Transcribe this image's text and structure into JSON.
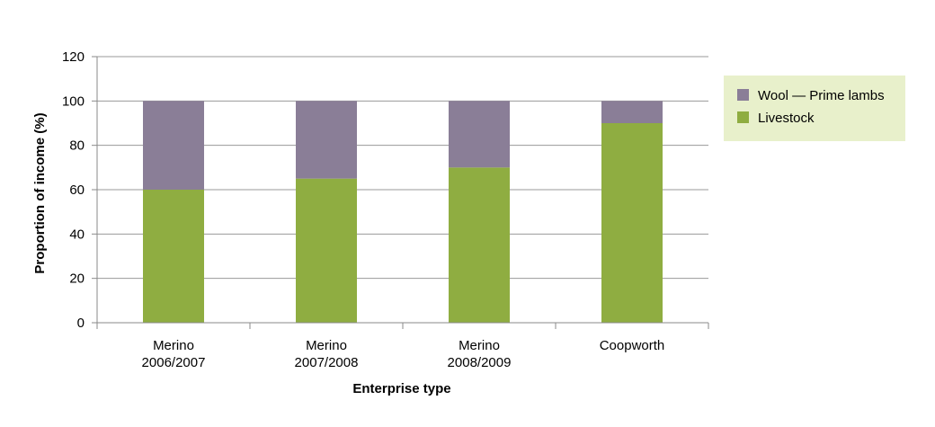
{
  "chart_data": {
    "type": "bar",
    "stacked": true,
    "categories": [
      [
        "Merino",
        "2006/2007"
      ],
      [
        "Merino",
        "2007/2008"
      ],
      [
        "Merino",
        "2008/2009"
      ],
      [
        "Coopworth"
      ]
    ],
    "series": [
      {
        "name": "Livestock",
        "color": "#8fad41",
        "values": [
          60,
          65,
          70,
          90
        ]
      },
      {
        "name": "Wool — Prime lambs",
        "color": "#8a7e97",
        "values": [
          40,
          35,
          30,
          10
        ]
      }
    ],
    "legend_order": [
      1,
      0
    ],
    "legend_position": "right",
    "legend_background": "#e8f0cb",
    "xlabel": "Enterprise type",
    "ylabel": "Proportion of income (%)",
    "ylim": [
      0,
      120
    ],
    "yticks": [
      0,
      20,
      40,
      60,
      80,
      100,
      120
    ],
    "grid": true
  }
}
